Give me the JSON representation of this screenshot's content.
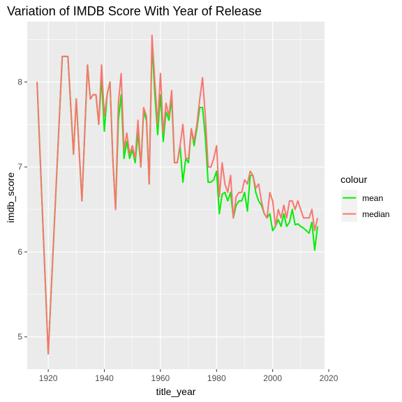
{
  "chart_data": {
    "type": "line",
    "title": "Variation of IMDB Score With Year of Release",
    "xlabel": "title_year",
    "ylabel": "imdb_score",
    "xlim": [
      1912.5,
      2018.5
    ],
    "ylim": [
      4.62,
      8.71
    ],
    "xticks": [
      1920,
      1940,
      1960,
      1980,
      2000,
      2020
    ],
    "yticks": [
      5,
      6,
      7,
      8
    ],
    "grid": true,
    "legend": {
      "title": "colour",
      "placement": "right"
    },
    "series": [
      {
        "name": "mean",
        "color": "#00ee00",
        "points": [
          [
            1916,
            8.0
          ],
          [
            1920,
            4.8
          ],
          [
            1925,
            8.3
          ],
          [
            1927,
            8.3
          ],
          [
            1929,
            7.15
          ],
          [
            1930,
            7.8
          ],
          [
            1932,
            6.6
          ],
          [
            1933,
            7.4
          ],
          [
            1934,
            8.2
          ],
          [
            1935,
            7.8
          ],
          [
            1936,
            7.85
          ],
          [
            1937,
            7.85
          ],
          [
            1938,
            7.5
          ],
          [
            1939,
            8.05
          ],
          [
            1940,
            7.42
          ],
          [
            1941,
            7.85
          ],
          [
            1942,
            8.0
          ],
          [
            1943,
            7.1
          ],
          [
            1944,
            6.5
          ],
          [
            1945,
            7.55
          ],
          [
            1946,
            7.85
          ],
          [
            1947,
            7.1
          ],
          [
            1948,
            7.3
          ],
          [
            1949,
            7.1
          ],
          [
            1950,
            7.2
          ],
          [
            1951,
            7.05
          ],
          [
            1952,
            7.4
          ],
          [
            1953,
            7.0
          ],
          [
            1954,
            7.65
          ],
          [
            1955,
            7.55
          ],
          [
            1956,
            6.8
          ],
          [
            1957,
            8.45
          ],
          [
            1958,
            7.85
          ],
          [
            1959,
            7.38
          ],
          [
            1960,
            7.85
          ],
          [
            1961,
            7.3
          ],
          [
            1962,
            7.65
          ],
          [
            1963,
            7.55
          ],
          [
            1964,
            7.8
          ],
          [
            1965,
            7.05
          ],
          [
            1966,
            7.05
          ],
          [
            1967,
            7.25
          ],
          [
            1968,
            6.82
          ],
          [
            1969,
            7.1
          ],
          [
            1970,
            7.05
          ],
          [
            1971,
            7.45
          ],
          [
            1972,
            7.25
          ],
          [
            1973,
            7.45
          ],
          [
            1974,
            7.7
          ],
          [
            1975,
            7.7
          ],
          [
            1976,
            7.35
          ],
          [
            1977,
            6.82
          ],
          [
            1978,
            6.82
          ],
          [
            1979,
            6.85
          ],
          [
            1980,
            6.95
          ],
          [
            1981,
            6.45
          ],
          [
            1982,
            6.68
          ],
          [
            1983,
            6.7
          ],
          [
            1984,
            6.6
          ],
          [
            1985,
            6.7
          ],
          [
            1986,
            6.4
          ],
          [
            1987,
            6.55
          ],
          [
            1988,
            6.6
          ],
          [
            1989,
            6.6
          ],
          [
            1990,
            6.7
          ],
          [
            1991,
            6.48
          ],
          [
            1992,
            6.9
          ],
          [
            1993,
            6.9
          ],
          [
            1994,
            6.7
          ],
          [
            1995,
            6.6
          ],
          [
            1996,
            6.55
          ],
          [
            1997,
            6.45
          ],
          [
            1998,
            6.4
          ],
          [
            1999,
            6.45
          ],
          [
            2000,
            6.25
          ],
          [
            2001,
            6.3
          ],
          [
            2002,
            6.38
          ],
          [
            2003,
            6.3
          ],
          [
            2004,
            6.45
          ],
          [
            2005,
            6.3
          ],
          [
            2006,
            6.35
          ],
          [
            2007,
            6.5
          ],
          [
            2008,
            6.32
          ],
          [
            2009,
            6.33
          ],
          [
            2010,
            6.3
          ],
          [
            2011,
            6.28
          ],
          [
            2012,
            6.25
          ],
          [
            2013,
            6.22
          ],
          [
            2014,
            6.35
          ],
          [
            2015,
            6.02
          ],
          [
            2016,
            6.3
          ]
        ]
      },
      {
        "name": "median",
        "color": "#f8766d",
        "points": [
          [
            1916,
            8.0
          ],
          [
            1920,
            4.8
          ],
          [
            1925,
            8.3
          ],
          [
            1927,
            8.3
          ],
          [
            1929,
            7.15
          ],
          [
            1930,
            7.8
          ],
          [
            1932,
            6.6
          ],
          [
            1933,
            7.4
          ],
          [
            1934,
            8.2
          ],
          [
            1935,
            7.8
          ],
          [
            1936,
            7.85
          ],
          [
            1937,
            7.85
          ],
          [
            1938,
            7.5
          ],
          [
            1939,
            8.2
          ],
          [
            1940,
            7.6
          ],
          [
            1941,
            7.85
          ],
          [
            1942,
            8.0
          ],
          [
            1943,
            7.1
          ],
          [
            1944,
            6.5
          ],
          [
            1945,
            7.75
          ],
          [
            1946,
            8.1
          ],
          [
            1947,
            7.2
          ],
          [
            1948,
            7.4
          ],
          [
            1949,
            7.15
          ],
          [
            1950,
            7.25
          ],
          [
            1951,
            7.1
          ],
          [
            1952,
            7.55
          ],
          [
            1953,
            7.0
          ],
          [
            1954,
            7.7
          ],
          [
            1955,
            7.6
          ],
          [
            1956,
            6.8
          ],
          [
            1957,
            8.55
          ],
          [
            1958,
            8.0
          ],
          [
            1959,
            7.5
          ],
          [
            1960,
            8.1
          ],
          [
            1961,
            7.4
          ],
          [
            1962,
            7.75
          ],
          [
            1963,
            7.6
          ],
          [
            1964,
            7.9
          ],
          [
            1965,
            7.05
          ],
          [
            1966,
            7.05
          ],
          [
            1967,
            7.25
          ],
          [
            1968,
            7.5
          ],
          [
            1969,
            7.1
          ],
          [
            1970,
            7.1
          ],
          [
            1971,
            7.45
          ],
          [
            1972,
            7.3
          ],
          [
            1973,
            7.5
          ],
          [
            1974,
            7.8
          ],
          [
            1975,
            8.05
          ],
          [
            1976,
            7.6
          ],
          [
            1977,
            7.0
          ],
          [
            1978,
            7.0
          ],
          [
            1979,
            7.1
          ],
          [
            1980,
            7.25
          ],
          [
            1981,
            6.65
          ],
          [
            1982,
            7.05
          ],
          [
            1983,
            6.8
          ],
          [
            1984,
            6.7
          ],
          [
            1985,
            6.9
          ],
          [
            1986,
            6.4
          ],
          [
            1987,
            6.65
          ],
          [
            1988,
            6.7
          ],
          [
            1989,
            6.7
          ],
          [
            1990,
            6.85
          ],
          [
            1991,
            6.8
          ],
          [
            1992,
            6.95
          ],
          [
            1993,
            6.9
          ],
          [
            1994,
            6.75
          ],
          [
            1995,
            6.8
          ],
          [
            1996,
            6.6
          ],
          [
            1997,
            6.45
          ],
          [
            1998,
            6.4
          ],
          [
            1999,
            6.7
          ],
          [
            2000,
            6.6
          ],
          [
            2001,
            6.3
          ],
          [
            2002,
            6.5
          ],
          [
            2003,
            6.4
          ],
          [
            2004,
            6.55
          ],
          [
            2005,
            6.4
          ],
          [
            2006,
            6.6
          ],
          [
            2007,
            6.6
          ],
          [
            2008,
            6.5
          ],
          [
            2009,
            6.6
          ],
          [
            2010,
            6.5
          ],
          [
            2011,
            6.4
          ],
          [
            2012,
            6.4
          ],
          [
            2013,
            6.4
          ],
          [
            2014,
            6.5
          ],
          [
            2015,
            6.25
          ],
          [
            2016,
            6.4
          ]
        ]
      }
    ]
  }
}
